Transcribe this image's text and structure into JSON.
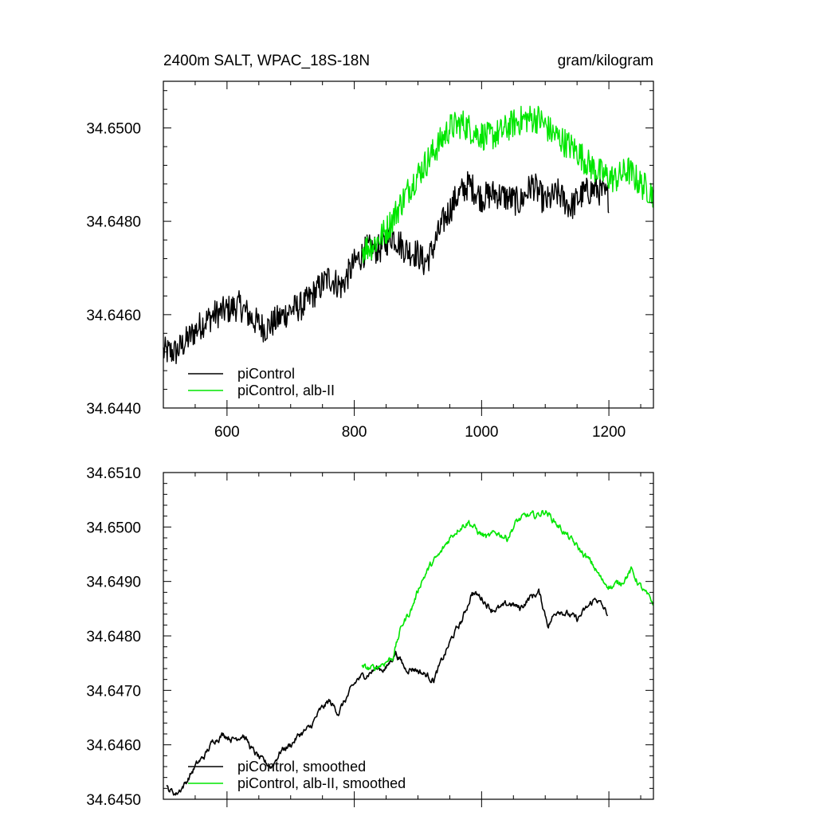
{
  "chart_data": [
    {
      "type": "line",
      "title": "2400m SALT, WPAC_18S-18N",
      "units": "gram/kilogram",
      "xlabel": "",
      "ylabel": "",
      "xlim": [
        500,
        1270
      ],
      "ylim": [
        34.644,
        34.651
      ],
      "xticks": [
        600,
        800,
        1000,
        1200
      ],
      "xtick_labels": [
        "600",
        "800",
        "1000",
        "1200"
      ],
      "yticks": [
        34.644,
        34.646,
        34.648,
        34.65
      ],
      "ytick_labels": [
        "34.6440",
        "34.6460",
        "34.6480",
        "34.6500"
      ],
      "legend": {
        "position": "bottom-left"
      },
      "series": [
        {
          "name": "piControl",
          "color": "#000000",
          "x": [
            500,
            520,
            540,
            560,
            580,
            600,
            620,
            640,
            660,
            680,
            700,
            720,
            740,
            760,
            780,
            800,
            820,
            840,
            860,
            880,
            900,
            910,
            920,
            940,
            960,
            980,
            1000,
            1020,
            1040,
            1060,
            1080,
            1100,
            1120,
            1140,
            1160,
            1180,
            1200
          ],
          "y": [
            34.6452,
            34.6452,
            34.6455,
            34.6458,
            34.646,
            34.6461,
            34.6462,
            34.6459,
            34.6457,
            34.6459,
            34.6461,
            34.6462,
            34.6465,
            34.6468,
            34.6466,
            34.6471,
            34.6474,
            34.6474,
            34.6477,
            34.6474,
            34.6473,
            34.6471,
            34.6473,
            34.648,
            34.6485,
            34.6488,
            34.6485,
            34.6486,
            34.6485,
            34.6484,
            34.6488,
            34.6484,
            34.6486,
            34.6483,
            34.6486,
            34.6487,
            34.6485
          ],
          "noise": 0.0004
        },
        {
          "name": "piControl, alb-II",
          "color": "#00e600",
          "x": [
            812,
            830,
            850,
            870,
            890,
            910,
            930,
            950,
            970,
            990,
            1010,
            1030,
            1050,
            1070,
            1090,
            1110,
            1130,
            1150,
            1170,
            1190,
            1210,
            1230,
            1250,
            1270
          ],
          "y": [
            34.6474,
            34.6475,
            34.6478,
            34.6483,
            34.6488,
            34.6492,
            34.6496,
            34.65,
            34.6501,
            34.6499,
            34.6498,
            34.6499,
            34.6501,
            34.6502,
            34.6502,
            34.6499,
            34.6497,
            34.6495,
            34.6492,
            34.649,
            34.6489,
            34.6491,
            34.6488,
            34.6486
          ],
          "noise": 0.0004
        }
      ]
    },
    {
      "type": "line",
      "title": "",
      "xlabel": "",
      "ylabel": "",
      "xlim": [
        500,
        1270
      ],
      "ylim": [
        34.645,
        34.651
      ],
      "xticks": [
        600,
        800,
        1000,
        1200
      ],
      "yticks": [
        34.645,
        34.646,
        34.647,
        34.648,
        34.649,
        34.65,
        34.651
      ],
      "ytick_labels": [
        "34.6450",
        "34.6460",
        "34.6470",
        "34.6480",
        "34.6490",
        "34.6500",
        "34.6510"
      ],
      "legend": {
        "position": "bottom-left"
      },
      "series": [
        {
          "name": "piControl, smoothed",
          "color": "#000000",
          "x": [
            505,
            520,
            535,
            550,
            565,
            580,
            595,
            610,
            625,
            640,
            655,
            670,
            685,
            700,
            715,
            730,
            745,
            760,
            775,
            790,
            805,
            820,
            835,
            850,
            865,
            880,
            895,
            910,
            925,
            940,
            955,
            970,
            985,
            1000,
            1015,
            1030,
            1045,
            1060,
            1075,
            1090,
            1105,
            1120,
            1135,
            1150,
            1165,
            1180,
            1198
          ],
          "y": [
            34.6452,
            34.6451,
            34.6453,
            34.6456,
            34.6458,
            34.6461,
            34.6462,
            34.6461,
            34.6462,
            34.6459,
            34.6457,
            34.6456,
            34.6459,
            34.646,
            34.6462,
            34.6463,
            34.6466,
            34.6468,
            34.6466,
            34.6469,
            34.6472,
            34.6473,
            34.6474,
            34.6474,
            34.6477,
            34.6474,
            34.6474,
            34.6473,
            34.6472,
            34.6476,
            34.648,
            34.6483,
            34.6488,
            34.6487,
            34.6485,
            34.6485,
            34.6486,
            34.6485,
            34.6487,
            34.6488,
            34.6482,
            34.6485,
            34.6484,
            34.6483,
            34.6485,
            34.6487,
            34.6484
          ],
          "noise": 8e-05
        },
        {
          "name": "piControl, alb-II, smoothed",
          "color": "#00e600",
          "x": [
            812,
            830,
            845,
            860,
            875,
            890,
            905,
            920,
            935,
            950,
            965,
            980,
            995,
            1010,
            1025,
            1040,
            1055,
            1070,
            1085,
            1100,
            1115,
            1130,
            1145,
            1160,
            1175,
            1190,
            1205,
            1220,
            1235,
            1250,
            1262,
            1270
          ],
          "y": [
            34.6474,
            34.6474,
            34.6475,
            34.6476,
            34.6482,
            34.6485,
            34.649,
            34.6493,
            34.6495,
            34.6498,
            34.65,
            34.6501,
            34.6499,
            34.6498,
            34.6499,
            34.6498,
            34.6501,
            34.6502,
            34.6502,
            34.6503,
            34.6501,
            34.6499,
            34.6497,
            34.6495,
            34.6493,
            34.649,
            34.6489,
            34.649,
            34.6492,
            34.6489,
            34.6487,
            34.6486
          ],
          "noise": 8e-05
        }
      ]
    }
  ]
}
